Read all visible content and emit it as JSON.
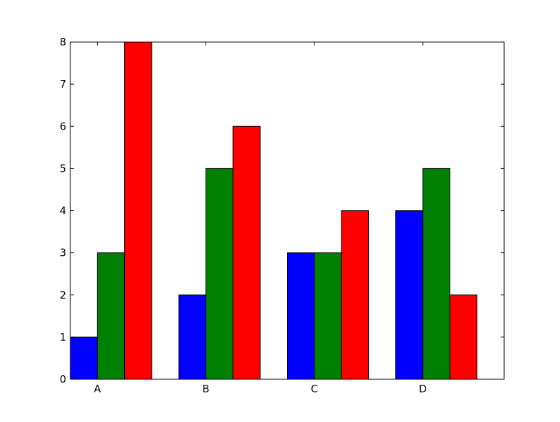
{
  "chart_data": {
    "type": "bar",
    "categories": [
      "A",
      "B",
      "C",
      "D"
    ],
    "series": [
      {
        "values": [
          1,
          2,
          3,
          4
        ],
        "color": "#0000ff"
      },
      {
        "values": [
          3,
          5,
          3,
          5
        ],
        "color": "#008000"
      },
      {
        "values": [
          8,
          6,
          4,
          2
        ],
        "color": "#ff0000"
      }
    ],
    "title": "",
    "xlabel": "",
    "ylabel": "",
    "ylim": [
      0,
      8
    ],
    "yticks": [
      "0",
      "1",
      "2",
      "3",
      "4",
      "5",
      "6",
      "7",
      "8"
    ],
    "grid": false,
    "legend": "none"
  }
}
